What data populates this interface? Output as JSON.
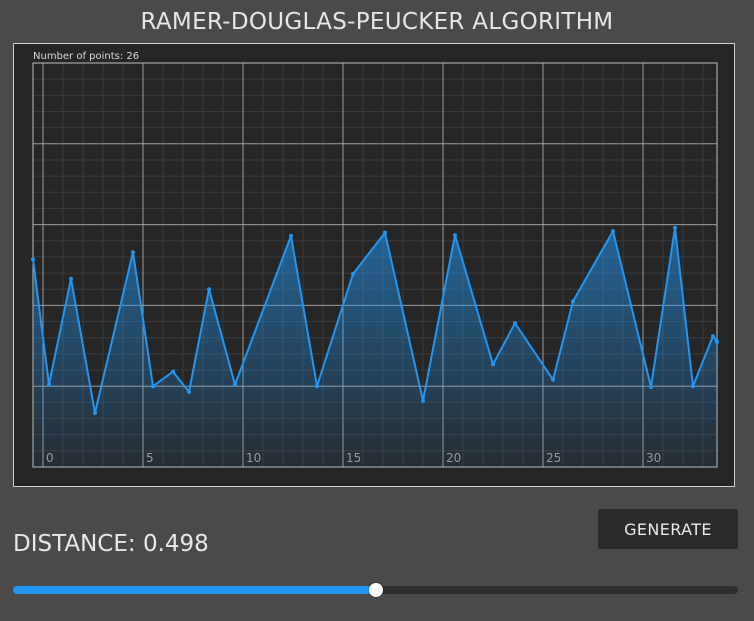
{
  "header": {
    "title": "RAMER-DOUGLAS-PEUCKER ALGORITHM"
  },
  "controls": {
    "generate_label": "GENERATE",
    "distance_label": "DISTANCE: 0.498",
    "distance_value": 0.498,
    "distance_fraction": 0.5
  },
  "colors": {
    "line": "#2196f3",
    "background": "#4a4a4a",
    "plot_background": "#262626",
    "grid_major": "#bdbdbd",
    "grid_minor": "#3a3a3a"
  },
  "chart_data": {
    "type": "area",
    "annotation": "Number of points: 26",
    "xlim": [
      -0.5,
      33.7
    ],
    "ylim": [
      -1.0,
      4.0
    ],
    "x_ticks": [
      0,
      5,
      10,
      15,
      20,
      25,
      30
    ],
    "x_tick_labels": [
      "0",
      "5",
      "10",
      "15",
      "20",
      "25",
      "30"
    ],
    "grid": true,
    "legend": "none",
    "series": [
      {
        "x": [
          -0.5,
          0.3,
          1.4,
          2.6,
          4.5,
          5.5,
          6.5,
          7.3,
          8.3,
          9.6,
          12.4,
          13.7,
          15.5,
          17.1,
          19.0,
          20.6,
          22.5,
          23.6,
          25.5,
          26.5,
          28.5,
          30.4,
          31.6,
          32.5,
          33.5,
          33.7
        ],
        "y": [
          1.57,
          0.02,
          1.33,
          -0.33,
          1.66,
          0.0,
          0.18,
          -0.07,
          1.2,
          0.02,
          1.86,
          0.0,
          1.39,
          1.9,
          -0.18,
          1.87,
          0.27,
          0.78,
          0.08,
          1.05,
          1.92,
          -0.01,
          1.96,
          0.0,
          0.62,
          0.55
        ]
      }
    ]
  }
}
